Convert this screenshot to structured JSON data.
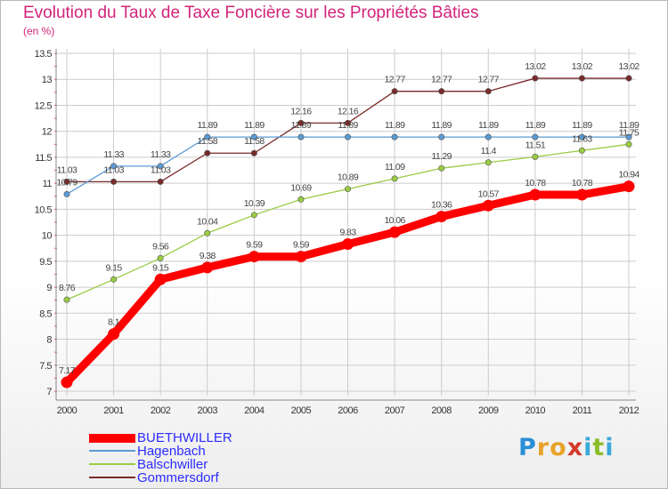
{
  "header": {
    "title": "Evolution du Taux de Taxe Foncière sur les Propriétés Bâties",
    "unit": "(en %)"
  },
  "chart_data": {
    "type": "line",
    "title": "Evolution du Taux de Taxe Foncière sur les Propriétés Bâties",
    "ylabel": "(en %)",
    "xlabel": "",
    "x": [
      "2000",
      "2001",
      "2002",
      "2003",
      "2004",
      "2005",
      "2006",
      "2007",
      "2008",
      "2009",
      "2010",
      "2011",
      "2012"
    ],
    "ylim": [
      7,
      13.5
    ],
    "yticks": [
      "7",
      "7.5",
      "8",
      "8.5",
      "9",
      "9.5",
      "10",
      "10.5",
      "11",
      "11.5",
      "12",
      "12.5",
      "13",
      "13.5"
    ],
    "grid": true,
    "series": [
      {
        "name": "BUETHWILLER",
        "color": "#ff0000",
        "values": [
          7.17,
          8.1,
          9.15,
          9.38,
          9.59,
          9.59,
          9.83,
          10.06,
          10.36,
          10.57,
          10.78,
          10.78,
          10.94
        ],
        "labels": [
          "7.17",
          "8.1",
          "9.15",
          "9.38",
          "9.59",
          "9.59",
          "9.83",
          "10.06",
          "10.36",
          "10.57",
          "10.78",
          "10.78",
          "10.94"
        ]
      },
      {
        "name": "Hagenbach",
        "color": "#5b9bd5",
        "values": [
          10.79,
          11.33,
          11.33,
          11.89,
          11.89,
          11.89,
          11.89,
          11.89,
          11.89,
          11.89,
          11.89,
          11.89,
          11.89
        ],
        "labels": [
          "10.79",
          "11.33",
          "11.33",
          "11.89",
          "11.89",
          "11.89",
          "11.89",
          "11.89",
          "11.89",
          "11.89",
          "11.89",
          "11.89",
          "11.89"
        ]
      },
      {
        "name": "Balschwiller",
        "color": "#99cc44",
        "values": [
          8.76,
          9.15,
          9.56,
          10.04,
          10.39,
          10.69,
          10.89,
          11.09,
          11.29,
          11.4,
          11.51,
          11.63,
          11.75
        ],
        "labels": [
          "8.76",
          "9.15",
          "9.56",
          "10.04",
          "10.39",
          "10.69",
          "10.89",
          "11.09",
          "11.29",
          "11.4",
          "11.51",
          "11.63",
          "11.75"
        ]
      },
      {
        "name": "Gommersdorf",
        "color": "#7a2a2a",
        "values": [
          11.03,
          11.03,
          11.03,
          11.58,
          11.58,
          12.16,
          12.16,
          12.77,
          12.77,
          12.77,
          13.02,
          13.02,
          13.02
        ],
        "labels": [
          "11.03",
          "11.03",
          "11.03",
          "11.58",
          "11.58",
          "12.16",
          "12.16",
          "12.77",
          "12.77",
          "12.77",
          "13.02",
          "13.02",
          "13.02"
        ]
      }
    ],
    "legend_position": "bottom-left"
  },
  "legend": [
    {
      "label": "BUETHWILLER",
      "color": "#ff0000"
    },
    {
      "label": "Hagenbach",
      "color": "#5b9bd5"
    },
    {
      "label": "Balschwiller",
      "color": "#99cc44"
    },
    {
      "label": "Gommersdorf",
      "color": "#7a2a2a"
    }
  ],
  "logo": {
    "letters": [
      "P",
      "r",
      "o",
      "x",
      "i",
      "t",
      "i"
    ],
    "colors": [
      "#2a8fd6",
      "#e8a32a",
      "#e8a32a",
      "#d23a2a",
      "#3aa9d9",
      "#8bbd2a",
      "#3aa9d9"
    ]
  }
}
